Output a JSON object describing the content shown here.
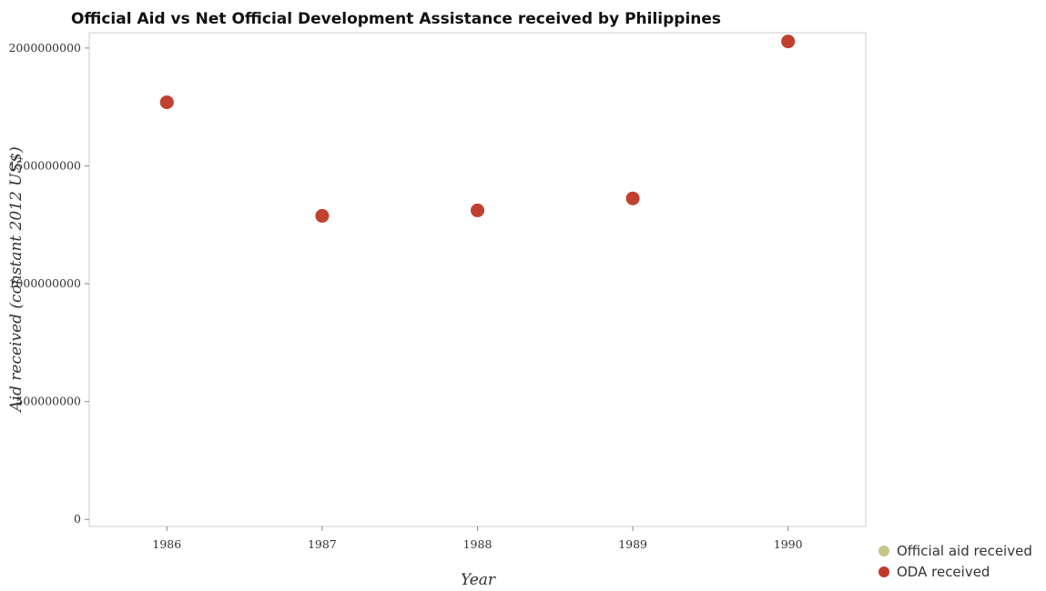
{
  "chart_data": {
    "type": "scatter",
    "title": "Official Aid vs Net Official Development Assistance received by Philippines",
    "xlabel": "Year",
    "ylabel": "Aid received (constant 2012 US$)",
    "x": [
      "1986",
      "1987",
      "1988",
      "1989",
      "1990"
    ],
    "series": [
      {
        "name": "Official aid received",
        "color": "#c8c48a",
        "values": [
          1770000000,
          1288000000,
          1311000000,
          1362000000,
          2028000000
        ]
      },
      {
        "name": "ODA received",
        "color": "#c0392b",
        "values": [
          1770000000,
          1288000000,
          1311000000,
          1362000000,
          2028000000
        ]
      }
    ],
    "yticks": [
      0,
      500000000,
      1000000000,
      1500000000,
      2000000000
    ],
    "ytick_labels": [
      "0",
      "500000000",
      "1000000000",
      "1500000000",
      "2000000000"
    ],
    "ylim": [
      -30000000,
      2065000000
    ],
    "grid": false,
    "legend_position": "bottom-right"
  }
}
